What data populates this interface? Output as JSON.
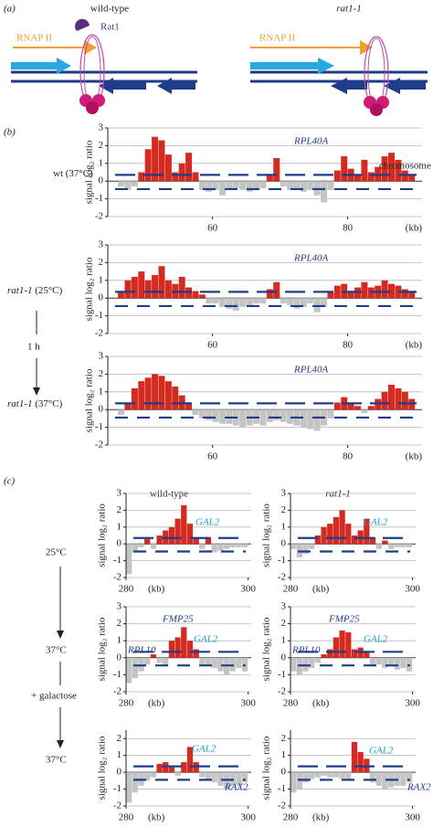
{
  "panel_labels": [
    "(a)",
    "(b)",
    "(c)"
  ],
  "schematic": {
    "wild_type": "wild-type",
    "mutant": "rat1-1",
    "rat1": "Rat1",
    "rnap_wt": "RNAP II",
    "rnap_mut": "RNAP II"
  },
  "panel_b": {
    "rows": [
      {
        "strain": "wt",
        "temp": "(37°C)"
      },
      {
        "strain": "rat1-1",
        "temp": "(25°C)"
      },
      {
        "strain": "rat1-1",
        "temp": "(37°C)"
      }
    ],
    "shift": "1 h"
  },
  "panel_c": {
    "columns": [
      "wild-type",
      "rat1-1"
    ],
    "conditions": [
      "25°C",
      "37°C",
      "+ galactose",
      "37°C"
    ]
  },
  "chart_data": [
    {
      "type": "histogram",
      "ylabel": "signal log₂ ratio",
      "xlabel": "(kb)",
      "bins": [
        46,
        47,
        48,
        49,
        50,
        51,
        52,
        53,
        54,
        55,
        56,
        57,
        58,
        59,
        60,
        61,
        62,
        63,
        64,
        65,
        66,
        67,
        68,
        69,
        70,
        71,
        72,
        73,
        74,
        75,
        76,
        77,
        78,
        79,
        80,
        81,
        82,
        83,
        84,
        85,
        86,
        87,
        88,
        89,
        90
      ],
      "values": [
        -0.3,
        -0.5,
        -0.3,
        0.5,
        1.8,
        2.5,
        2.3,
        1.5,
        0.5,
        1.0,
        1.6,
        0.5,
        -0.5,
        -0.6,
        -0.5,
        -0.8,
        -0.5,
        -0.4,
        -0.5,
        -0.6,
        -0.5,
        -0.4,
        0.3,
        1.3,
        -0.3,
        -0.5,
        -0.5,
        -0.6,
        -0.5,
        -0.8,
        -1.2,
        -0.5,
        0.6,
        1.4,
        0.7,
        0.3,
        1.2,
        0.5,
        0.8,
        1.4,
        1.6,
        1.2,
        0.6,
        0.3
      ],
      "xlim": [
        44.5,
        91
      ],
      "ylim": [
        -2,
        3
      ],
      "xticks": [
        60,
        80
      ],
      "yticks": [
        -2,
        -1,
        0,
        1,
        2,
        3
      ],
      "colors": {
        "positive": "#d42a20",
        "negative": "#c4c4c4"
      },
      "grid": true,
      "annotations": [
        {
          "text": "RPL40A",
          "color": "#1f3c88"
        },
        {
          "text": "chromosome 9",
          "color": "#222222"
        }
      ]
    },
    {
      "type": "histogram",
      "ylabel": "signal log₂ ratio",
      "xlabel": "(kb)",
      "bins": [
        46,
        47,
        48,
        49,
        50,
        51,
        52,
        53,
        54,
        55,
        56,
        57,
        58,
        59,
        60,
        61,
        62,
        63,
        64,
        65,
        66,
        67,
        68,
        69,
        70,
        71,
        72,
        73,
        74,
        75,
        76,
        77,
        78,
        79,
        80,
        81,
        82,
        83,
        84,
        85,
        86,
        87,
        88,
        89,
        90
      ],
      "values": [
        0.3,
        1.0,
        1.2,
        1.5,
        1.0,
        1.3,
        1.8,
        1.0,
        0.8,
        1.2,
        0.6,
        0.4,
        0.2,
        -0.3,
        -0.3,
        -0.5,
        -0.6,
        -0.7,
        -0.5,
        -0.4,
        -0.3,
        -0.3,
        0.5,
        0.9,
        -0.3,
        -0.4,
        -0.6,
        -0.5,
        -0.3,
        -0.8,
        -0.5,
        0.3,
        0.7,
        0.8,
        0.4,
        0.6,
        0.9,
        0.6,
        0.7,
        1.0,
        0.8,
        0.7,
        0.5,
        0.3
      ],
      "xlim": [
        44.5,
        91
      ],
      "ylim": [
        -2,
        3
      ],
      "xticks": [
        60,
        80
      ],
      "yticks": [
        -2,
        -1,
        0,
        1,
        2,
        3
      ],
      "colors": {
        "positive": "#d42a20",
        "negative": "#c4c4c4"
      },
      "grid": true,
      "annotations": [
        {
          "text": "RPL40A",
          "color": "#1f3c88"
        }
      ]
    },
    {
      "type": "histogram",
      "ylabel": "signal log₂ ratio",
      "xlabel": "(kb)",
      "bins": [
        46,
        47,
        48,
        49,
        50,
        51,
        52,
        53,
        54,
        55,
        56,
        57,
        58,
        59,
        60,
        61,
        62,
        63,
        64,
        65,
        66,
        67,
        68,
        69,
        70,
        71,
        72,
        73,
        74,
        75,
        76,
        77,
        78,
        79,
        80,
        81,
        82,
        83,
        84,
        85,
        86,
        87,
        88,
        89,
        90
      ],
      "values": [
        -0.3,
        0.3,
        1.2,
        1.6,
        1.8,
        2.0,
        1.9,
        1.6,
        1.3,
        0.8,
        0.4,
        -0.3,
        -0.5,
        -0.6,
        -0.7,
        -0.8,
        -0.8,
        -0.9,
        -1.0,
        -0.9,
        -0.8,
        -0.9,
        -0.7,
        -0.6,
        -0.7,
        -0.8,
        -0.9,
        -1.0,
        -1.1,
        -1.2,
        -0.9,
        -0.5,
        0.4,
        0.7,
        0.3,
        0.2,
        -0.2,
        0.2,
        0.6,
        1.0,
        1.4,
        1.2,
        1.0,
        0.6
      ],
      "xlim": [
        44.5,
        91
      ],
      "ylim": [
        -2,
        3
      ],
      "xticks": [
        60,
        80
      ],
      "yticks": [
        -2,
        -1,
        0,
        1,
        2,
        3
      ],
      "colors": {
        "positive": "#d42a20",
        "negative": "#c4c4c4"
      },
      "grid": true,
      "annotations": [
        {
          "text": "RPL40A",
          "color": "#1f3c88"
        }
      ]
    },
    {
      "type": "histogram",
      "ylabel": "signal log₂ ratio",
      "xlabel": "(kb)",
      "bins": [
        280,
        281,
        282,
        283,
        284,
        285,
        286,
        287,
        288,
        289,
        290,
        291,
        292,
        293,
        294,
        295,
        296,
        297,
        298,
        299,
        300
      ],
      "values": [
        -1.8,
        -0.5,
        -0.2,
        0.3,
        -0.3,
        0.5,
        0.8,
        1.0,
        1.5,
        2.3,
        1.2,
        0.3,
        -0.3,
        0.4,
        -0.5,
        -0.4,
        -0.3,
        -0.2,
        -0.2,
        -0.2
      ],
      "xlim": [
        280,
        300.5
      ],
      "ylim": [
        -2,
        3
      ],
      "xticks": [
        280,
        300
      ],
      "yticks": [
        -2,
        -1,
        0,
        1,
        2,
        3
      ],
      "colors": {
        "positive": "#d42a20",
        "negative": "#c4c4c4"
      },
      "grid": true,
      "annotations": [
        {
          "text": "GAL2",
          "color": "#1aa0d0"
        }
      ]
    },
    {
      "type": "histogram",
      "ylabel": "signal log₂ ratio",
      "xlabel": "(kb)",
      "bins": [
        280,
        281,
        282,
        283,
        284,
        285,
        286,
        287,
        288,
        289,
        290,
        291,
        292,
        293,
        294,
        295,
        296,
        297,
        298,
        299,
        300
      ],
      "values": [
        -0.3,
        -0.8,
        -0.6,
        -0.3,
        0.5,
        1.0,
        1.2,
        1.6,
        2.0,
        1.2,
        0.5,
        0.8,
        1.5,
        0.4,
        -0.3,
        0.2,
        -0.3,
        -0.2,
        -0.2,
        -0.2
      ],
      "xlim": [
        280,
        300.5
      ],
      "ylim": [
        -2,
        3
      ],
      "xticks": [
        280,
        300
      ],
      "yticks": [
        -2,
        -1,
        0,
        1,
        2,
        3
      ],
      "colors": {
        "positive": "#d42a20",
        "negative": "#c4c4c4"
      },
      "grid": true,
      "annotations": [
        {
          "text": "GAL2",
          "color": "#1aa0d0"
        }
      ]
    },
    {
      "type": "histogram",
      "ylabel": "signal log₂ ratio",
      "xlabel": "(kb)",
      "bins": [
        280,
        281,
        282,
        283,
        284,
        285,
        286,
        287,
        288,
        289,
        290,
        291,
        292,
        293,
        294,
        295,
        296,
        297,
        298,
        299,
        300
      ],
      "values": [
        -1.5,
        -1.2,
        -0.8,
        -0.4,
        0.2,
        -0.3,
        -0.5,
        1.0,
        1.2,
        1.8,
        1.0,
        0.5,
        -0.4,
        -0.5,
        -0.6,
        -0.8,
        -1.0,
        -0.8,
        -0.6,
        -0.8
      ],
      "xlim": [
        280,
        300.5
      ],
      "ylim": [
        -2,
        3
      ],
      "xticks": [
        280,
        300
      ],
      "yticks": [
        -2,
        -1,
        0,
        1,
        2,
        3
      ],
      "colors": {
        "positive": "#d42a20",
        "negative": "#c4c4c4"
      },
      "grid": true,
      "annotations": [
        {
          "text": "FMP25",
          "color": "#1f3c88"
        },
        {
          "text": "RPL10",
          "color": "#1f3c88"
        },
        {
          "text": "GAL2",
          "color": "#1aa0d0"
        }
      ]
    },
    {
      "type": "histogram",
      "ylabel": "signal log₂ ratio",
      "xlabel": "(kb)",
      "bins": [
        280,
        281,
        282,
        283,
        284,
        285,
        286,
        287,
        288,
        289,
        290,
        291,
        292,
        293,
        294,
        295,
        296,
        297,
        298,
        299,
        300
      ],
      "values": [
        -0.8,
        -1.0,
        -0.8,
        -0.6,
        -0.3,
        0.2,
        0.5,
        1.2,
        1.6,
        1.5,
        0.5,
        0.6,
        0.4,
        -0.5,
        -0.4,
        -0.6,
        -0.5,
        -0.7,
        -0.6,
        -0.8
      ],
      "xlim": [
        280,
        300.5
      ],
      "ylim": [
        -2,
        3
      ],
      "xticks": [
        280,
        300
      ],
      "yticks": [
        -2,
        -1,
        0,
        1,
        2,
        3
      ],
      "colors": {
        "positive": "#d42a20",
        "negative": "#c4c4c4"
      },
      "grid": true,
      "annotations": [
        {
          "text": "FMP25",
          "color": "#1f3c88"
        },
        {
          "text": "RPL10",
          "color": "#1f3c88"
        },
        {
          "text": "GAL2",
          "color": "#1aa0d0"
        }
      ]
    },
    {
      "type": "histogram",
      "ylabel": "signal log₂ ratio",
      "xlabel": "(kb)",
      "bins": [
        280,
        281,
        282,
        283,
        284,
        285,
        286,
        287,
        288,
        289,
        290,
        291,
        292,
        293,
        294,
        295,
        296,
        297,
        298,
        299,
        300
      ],
      "values": [
        -1.8,
        -1.2,
        -0.8,
        -0.5,
        -0.3,
        0.5,
        0.6,
        0.3,
        -0.2,
        0.6,
        1.5,
        0.6,
        -0.3,
        -0.5,
        -0.6,
        -0.8,
        -1.0,
        -0.8,
        -0.8,
        -0.6
      ],
      "xlim": [
        280,
        300.5
      ],
      "ylim": [
        -2,
        2.5
      ],
      "xticks": [
        280,
        300
      ],
      "yticks": [
        -2,
        -1,
        0,
        1,
        2
      ],
      "colors": {
        "positive": "#d42a20",
        "negative": "#c4c4c4"
      },
      "grid": true,
      "annotations": [
        {
          "text": "GAL2",
          "color": "#1aa0d0"
        },
        {
          "text": "RAX2",
          "color": "#1f3c88"
        }
      ]
    },
    {
      "type": "histogram",
      "ylabel": "signal log₂ ratio",
      "xlabel": "(kb)",
      "bins": [
        280,
        281,
        282,
        283,
        284,
        285,
        286,
        287,
        288,
        289,
        290,
        291,
        292,
        293,
        294,
        295,
        296,
        297,
        298,
        299,
        300
      ],
      "values": [
        -1.2,
        -1.0,
        -0.6,
        -0.4,
        -0.3,
        -0.2,
        -0.3,
        -0.3,
        -0.4,
        -0.5,
        1.8,
        1.2,
        0.8,
        -0.6,
        -0.8,
        -1.0,
        -0.9,
        -0.8,
        -0.8,
        -0.6
      ],
      "xlim": [
        280,
        300.5
      ],
      "ylim": [
        -2,
        2.5
      ],
      "xticks": [
        280,
        300
      ],
      "yticks": [
        -2,
        -1,
        0,
        1,
        2
      ],
      "colors": {
        "positive": "#d42a20",
        "negative": "#c4c4c4"
      },
      "grid": true,
      "annotations": [
        {
          "text": "GAL2",
          "color": "#1aa0d0"
        },
        {
          "text": "RAX2",
          "color": "#1f3c88"
        }
      ]
    }
  ]
}
